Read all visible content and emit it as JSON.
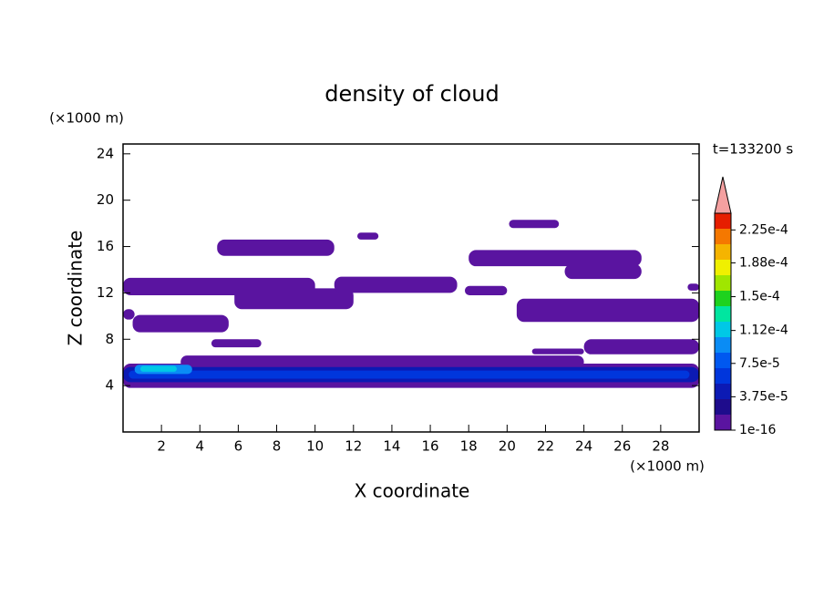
{
  "chart_data": {
    "type": "contour",
    "title": "density of cloud",
    "annotation": "t=133200 s",
    "x_label": "X coordinate",
    "y_label": "Z coordinate",
    "x_unit": "(×1000 m)",
    "y_unit": "(×1000 m)",
    "xlim": [
      0,
      30
    ],
    "ylim": [
      0,
      24.85
    ],
    "xticks": [
      2,
      4,
      6,
      8,
      10,
      12,
      14,
      16,
      18,
      20,
      22,
      24,
      26,
      28
    ],
    "yticks": [
      4,
      8,
      12,
      16,
      20,
      24
    ],
    "colorbar": {
      "lim": [
        1e-16,
        0.00024375
      ],
      "ticks": [
        {
          "value": 1e-16,
          "label": "1e-16"
        },
        {
          "value": 3.75e-05,
          "label": "3.75e-5"
        },
        {
          "value": 7.5e-05,
          "label": "7.5e-5"
        },
        {
          "value": 0.000112,
          "label": "1.12e-4"
        },
        {
          "value": 0.00015,
          "label": "1.5e-4"
        },
        {
          "value": 0.000188,
          "label": "1.88e-4"
        },
        {
          "value": 0.000225,
          "label": "2.25e-4"
        }
      ],
      "colors": [
        "#5a14a0",
        "#1e0c8c",
        "#0c1ab4",
        "#0036dc",
        "#0058f0",
        "#0a8cf5",
        "#00c8e6",
        "#00e6a0",
        "#1ed21e",
        "#a0e600",
        "#f0f000",
        "#f5b400",
        "#f57800",
        "#e61e00"
      ],
      "extend_color": "#f4a0a0"
    },
    "regions": [
      {
        "x": [
          0,
          30
        ],
        "z": [
          3.8,
          5.9
        ],
        "level": 0
      },
      {
        "x": [
          3,
          24
        ],
        "z": [
          5.5,
          6.6
        ],
        "level": 0
      },
      {
        "x": [
          0,
          30
        ],
        "z": [
          4.3,
          5.6
        ],
        "level": 2
      },
      {
        "x": [
          0.3,
          29.5
        ],
        "z": [
          4.6,
          5.3
        ],
        "level": 3
      },
      {
        "x": [
          0.6,
          3.6
        ],
        "z": [
          5.0,
          5.8
        ],
        "level": 5
      },
      {
        "x": [
          0.9,
          2.8
        ],
        "z": [
          5.2,
          5.7
        ],
        "level": 6
      },
      {
        "x": [
          0,
          0.6
        ],
        "z": [
          9.7,
          10.6
        ],
        "level": 0
      },
      {
        "x": [
          0.5,
          5.5
        ],
        "z": [
          8.6,
          10.1
        ],
        "level": 0
      },
      {
        "x": [
          4.6,
          7.2
        ],
        "z": [
          7.3,
          8.0
        ],
        "level": 0
      },
      {
        "x": [
          21.3,
          24
        ],
        "z": [
          6.7,
          7.2
        ],
        "level": 0
      },
      {
        "x": [
          24,
          30
        ],
        "z": [
          6.7,
          8.0
        ],
        "level": 0
      },
      {
        "x": [
          20.5,
          30
        ],
        "z": [
          9.5,
          11.5
        ],
        "level": 0
      },
      {
        "x": [
          0,
          10
        ],
        "z": [
          11.8,
          13.3
        ],
        "level": 0
      },
      {
        "x": [
          5.8,
          12
        ],
        "z": [
          10.6,
          12.4
        ],
        "level": 0
      },
      {
        "x": [
          11,
          17.4
        ],
        "z": [
          12.0,
          13.4
        ],
        "level": 0
      },
      {
        "x": [
          17.8,
          20
        ],
        "z": [
          11.8,
          12.6
        ],
        "level": 0
      },
      {
        "x": [
          18,
          27
        ],
        "z": [
          14.3,
          15.7
        ],
        "level": 0
      },
      {
        "x": [
          23,
          27
        ],
        "z": [
          13.2,
          14.5
        ],
        "level": 0
      },
      {
        "x": [
          4.9,
          11
        ],
        "z": [
          15.2,
          16.6
        ],
        "level": 0
      },
      {
        "x": [
          12.2,
          13.3
        ],
        "z": [
          16.6,
          17.2
        ],
        "level": 0
      },
      {
        "x": [
          20.1,
          22.7
        ],
        "z": [
          17.6,
          18.3
        ],
        "level": 0
      },
      {
        "x": [
          29.4,
          30
        ],
        "z": [
          12.2,
          12.8
        ],
        "level": 0
      }
    ]
  }
}
